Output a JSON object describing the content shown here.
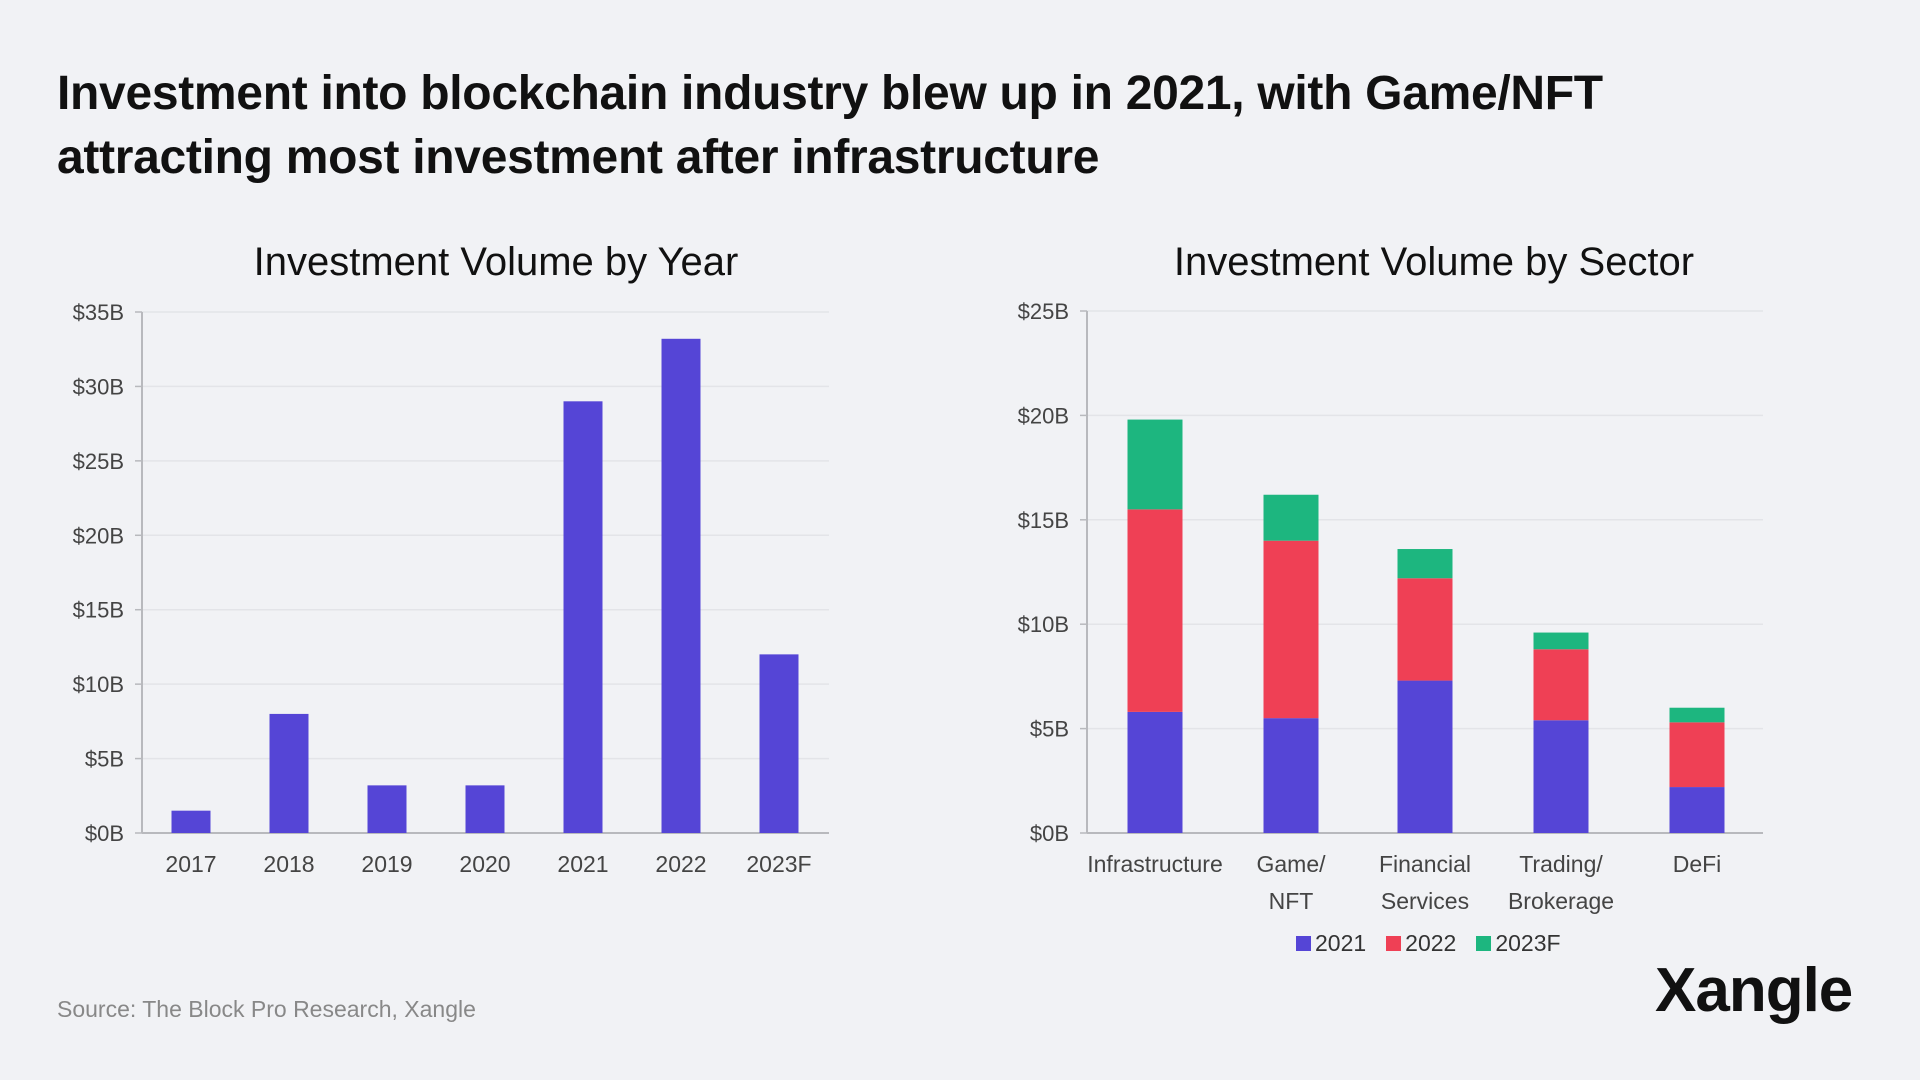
{
  "headline": {
    "line1": "Investment into blockchain industry blew up in 2021, with Game/NFT",
    "line2": "attracting most investment after infrastructure"
  },
  "source": "Source: The Block Pro Research, Xangle",
  "logo": "Xangle",
  "colors": {
    "2021": "#5545d6",
    "2022": "#ef4055",
    "2023F": "#1db67f",
    "grid": "#e3e4e8",
    "axis": "#b8b9bd"
  },
  "chart_data": [
    {
      "type": "bar",
      "title": "Investment Volume by Year",
      "categories": [
        "2017",
        "2018",
        "2019",
        "2020",
        "2021",
        "2022",
        "2023F"
      ],
      "values": [
        1.5,
        8.0,
        3.2,
        3.2,
        29.0,
        33.2,
        12.0
      ],
      "ylim": [
        0,
        35
      ],
      "yticks": [
        0,
        5,
        10,
        15,
        20,
        25,
        30,
        35
      ],
      "ytick_labels": [
        "$0B",
        "$5B",
        "$10B",
        "$15B",
        "$20B",
        "$25B",
        "$30B",
        "$35B"
      ],
      "xlabel": "",
      "ylabel": "",
      "grid": true
    },
    {
      "type": "bar",
      "stacked": true,
      "title": "Investment Volume by Sector",
      "categories": [
        [
          "Infrastructure"
        ],
        [
          "Game/",
          "NFT"
        ],
        [
          "Financial",
          "Services"
        ],
        [
          "Trading/",
          "Brokerage"
        ],
        [
          "DeFi"
        ]
      ],
      "series": [
        {
          "name": "2021",
          "values": [
            5.8,
            5.5,
            7.3,
            5.4,
            2.2
          ]
        },
        {
          "name": "2022",
          "values": [
            9.7,
            8.5,
            4.9,
            3.4,
            3.1
          ]
        },
        {
          "name": "2023F",
          "values": [
            4.3,
            2.2,
            1.4,
            0.8,
            0.7
          ]
        }
      ],
      "ylim": [
        0,
        25
      ],
      "yticks": [
        0,
        5,
        10,
        15,
        20,
        25
      ],
      "ytick_labels": [
        "$0B",
        "$5B",
        "$10B",
        "$15B",
        "$20B",
        "$25B"
      ],
      "legend_position": "bottom",
      "xlabel": "",
      "ylabel": "",
      "grid": true
    }
  ]
}
